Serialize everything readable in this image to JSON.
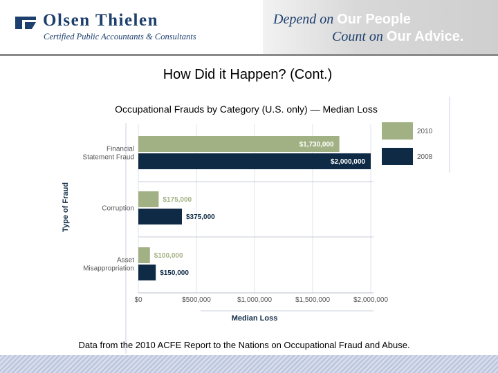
{
  "header": {
    "company_name": "Olsen Thielen",
    "company_tagline": "Certified Public Accountants & Consultants",
    "slogan_line1_a": "Depend on ",
    "slogan_line1_b": "Our People",
    "slogan_line2_a": "Count on ",
    "slogan_line2_b": "Our Advice.",
    "brand_color": "#1d3f6e"
  },
  "slide": {
    "title": "How Did it Happen? (Cont.)",
    "footnote": "Data from the 2010 ACFE Report to the Nations on Occupational Fraud and Abuse."
  },
  "chart_data": {
    "type": "bar",
    "orientation": "horizontal",
    "title": "Occupational Frauds by Category (U.S. only) — Median Loss",
    "xlabel": "Median Loss",
    "ylabel": "Type of Fraud",
    "xlim": [
      0,
      2000000
    ],
    "xticks": [
      0,
      500000,
      1000000,
      1500000,
      2000000
    ],
    "xtick_labels": [
      "$0",
      "$500,000",
      "$1,000,000",
      "$1,500,000",
      "$2,000,000"
    ],
    "categories": [
      {
        "key": "financial",
        "lines": [
          "Financial",
          "Statement Fraud"
        ]
      },
      {
        "key": "corruption",
        "lines": [
          "Corruption"
        ]
      },
      {
        "key": "asset",
        "lines": [
          "Asset",
          "Misappropriation"
        ]
      }
    ],
    "series": [
      {
        "name": "2010",
        "color": "#a2b183",
        "values": [
          1730000,
          175000,
          100000
        ],
        "labels": [
          "$1,730,000",
          "$175,000",
          "$100,000"
        ]
      },
      {
        "name": "2008",
        "color": "#0e2a45",
        "values": [
          2000000,
          375000,
          150000
        ],
        "labels": [
          "$2,000,000",
          "$375,000",
          "$150,000"
        ]
      }
    ],
    "grid": true,
    "legend": "top-right"
  }
}
